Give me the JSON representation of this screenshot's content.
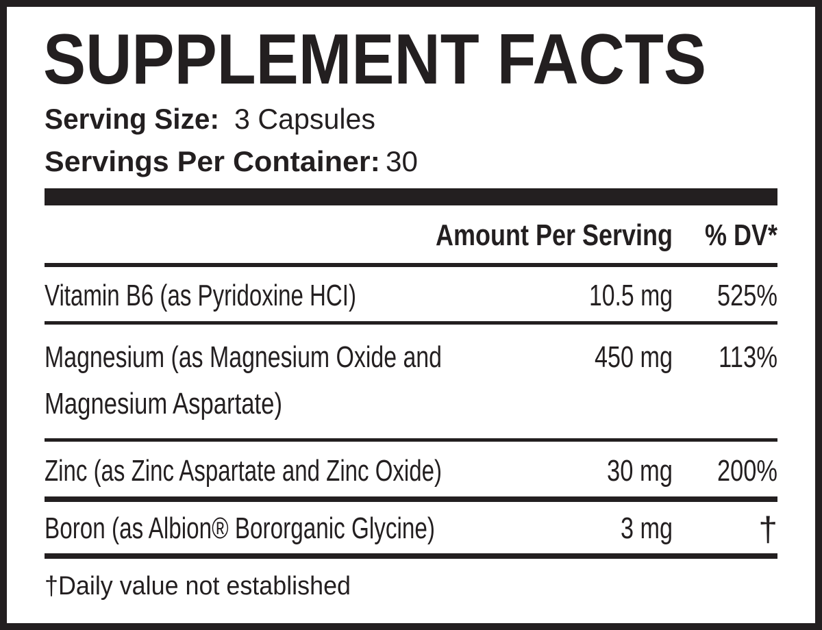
{
  "title": "SUPPLEMENT FACTS",
  "serving_size": {
    "label": "Serving Size:",
    "value": "3 Capsules"
  },
  "servings_per_container": {
    "label": "Servings Per Container:",
    "value": "30"
  },
  "header": {
    "amount": "Amount Per Serving",
    "dv": "% DV*"
  },
  "rows": [
    {
      "name": [
        "Vitamin B6 (as Pyridoxine HCI)"
      ],
      "amount": "10.5 mg",
      "dv": "525%"
    },
    {
      "name": [
        "Magnesium (as Magnesium Oxide and",
        "Magnesium Aspartate)"
      ],
      "amount": "450 mg",
      "dv": "113%"
    },
    {
      "name": [
        "Zinc (as Zinc Aspartate and Zinc Oxide)"
      ],
      "amount": "30 mg",
      "dv": "200%"
    },
    {
      "name": [
        "Boron (as Albion® Bororganic Glycine)"
      ],
      "amount": "3 mg",
      "dv": "†"
    }
  ],
  "footnote": "†Daily value not established"
}
